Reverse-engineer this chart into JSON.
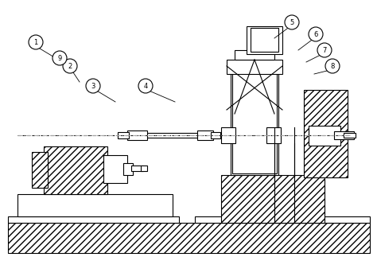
{
  "background_color": "#ffffff",
  "line_color": "#000000",
  "hatch_color": "#000000",
  "centerline_color": "#aaaaaa",
  "label_color": "#000000",
  "fig_width": 4.74,
  "fig_height": 3.23,
  "dpi": 100
}
